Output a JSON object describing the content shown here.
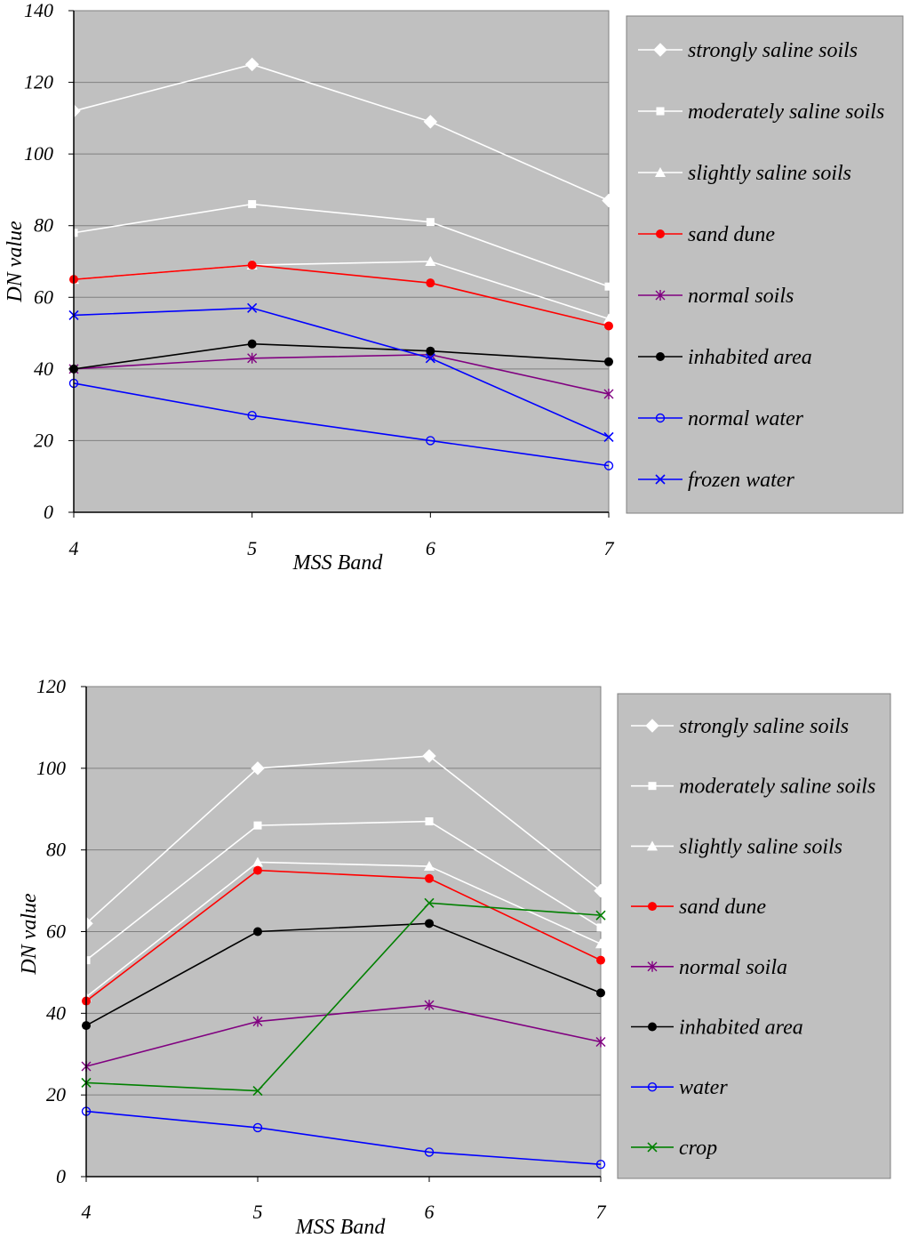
{
  "chart_data": [
    {
      "type": "line",
      "title": "",
      "xlabel": "MSS Band",
      "ylabel": "DN value",
      "categories": [
        "4",
        "5",
        "6",
        "7"
      ],
      "ylim": [
        0,
        140
      ],
      "yticks": [
        "0",
        "20",
        "40",
        "60",
        "80",
        "100",
        "120",
        "140"
      ],
      "grid": "horizontal",
      "legend": "right",
      "series": [
        {
          "name": "strongly saline soils",
          "values": [
            112,
            125,
            109,
            87
          ],
          "color": "#ffffff",
          "marker": "diamond"
        },
        {
          "name": "moderately saline soils",
          "values": [
            78,
            86,
            81,
            63
          ],
          "color": "#ffffff",
          "marker": "square"
        },
        {
          "name": "slightly saline soils",
          "values": [
            65,
            69,
            70,
            54
          ],
          "color": "#ffffff",
          "marker": "triangle"
        },
        {
          "name": "sand dune",
          "values": [
            65,
            69,
            64,
            52
          ],
          "color": "#ff0000",
          "marker": "dot"
        },
        {
          "name": "normal soils",
          "values": [
            40,
            43,
            44,
            33
          ],
          "color": "#800080",
          "marker": "star"
        },
        {
          "name": "inhabited area",
          "values": [
            40,
            47,
            45,
            42
          ],
          "color": "#000000",
          "marker": "dot"
        },
        {
          "name": "normal water",
          "values": [
            36,
            27,
            20,
            13
          ],
          "color": "#0000ff",
          "marker": "circle"
        },
        {
          "name": "frozen water",
          "values": [
            55,
            57,
            43,
            21
          ],
          "color": "#0000ff",
          "marker": "x"
        }
      ]
    },
    {
      "type": "line",
      "title": "",
      "xlabel": "MSS Band",
      "ylabel": "DN value",
      "categories": [
        "4",
        "5",
        "6",
        "7"
      ],
      "ylim": [
        0,
        120
      ],
      "yticks": [
        "0",
        "20",
        "40",
        "60",
        "80",
        "100",
        "120"
      ],
      "grid": "horizontal",
      "legend": "right",
      "series": [
        {
          "name": "strongly saline soils",
          "values": [
            62,
            100,
            103,
            70
          ],
          "color": "#ffffff",
          "marker": "diamond"
        },
        {
          "name": "moderately saline soils",
          "values": [
            53,
            86,
            87,
            61
          ],
          "color": "#ffffff",
          "marker": "square"
        },
        {
          "name": "slightly saline soils",
          "values": [
            44,
            77,
            76,
            57
          ],
          "color": "#ffffff",
          "marker": "triangle"
        },
        {
          "name": "sand dune",
          "values": [
            43,
            75,
            73,
            53
          ],
          "color": "#ff0000",
          "marker": "dot"
        },
        {
          "name": "normal soila",
          "values": [
            27,
            38,
            42,
            33
          ],
          "color": "#800080",
          "marker": "star"
        },
        {
          "name": "inhabited area",
          "values": [
            37,
            60,
            62,
            45
          ],
          "color": "#000000",
          "marker": "dot"
        },
        {
          "name": "water",
          "values": [
            16,
            12,
            6,
            3
          ],
          "color": "#0000ff",
          "marker": "circle"
        },
        {
          "name": "crop",
          "values": [
            23,
            21,
            67,
            64
          ],
          "color": "#008000",
          "marker": "x"
        }
      ]
    }
  ]
}
